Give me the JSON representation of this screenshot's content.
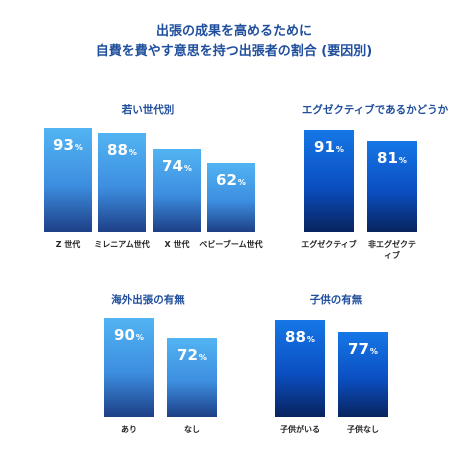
{
  "title_lines": [
    "出張の成果を高めるために",
    "自費を費やす意思を持つ出張者の割合 (要因別)"
  ],
  "colors": {
    "title": "#1f4e9c",
    "light_bar": "#4aa6ee",
    "dark_bar": "#0c5fd6"
  },
  "chart_data": [
    {
      "type": "bar",
      "title": "若い世代別",
      "categories": [
        "Z 世代",
        "ミレニアム世代",
        "X 世代",
        "ベビーブーム世代"
      ],
      "values": [
        93,
        88,
        74,
        62
      ],
      "unit": "%",
      "color": "light"
    },
    {
      "type": "bar",
      "title": "エグゼクティブであるかどうか",
      "categories": [
        "エグゼクティブ",
        "非エグゼクティブ"
      ],
      "values": [
        91,
        81
      ],
      "unit": "%",
      "color": "dark"
    },
    {
      "type": "bar",
      "title": "海外出張の有無",
      "categories": [
        "あり",
        "なし"
      ],
      "values": [
        90,
        72
      ],
      "unit": "%",
      "color": "light"
    },
    {
      "type": "bar",
      "title": "子供の有無",
      "categories": [
        "子供がいる",
        "子供なし"
      ],
      "values": [
        88,
        77
      ],
      "unit": "%",
      "color": "dark"
    }
  ]
}
